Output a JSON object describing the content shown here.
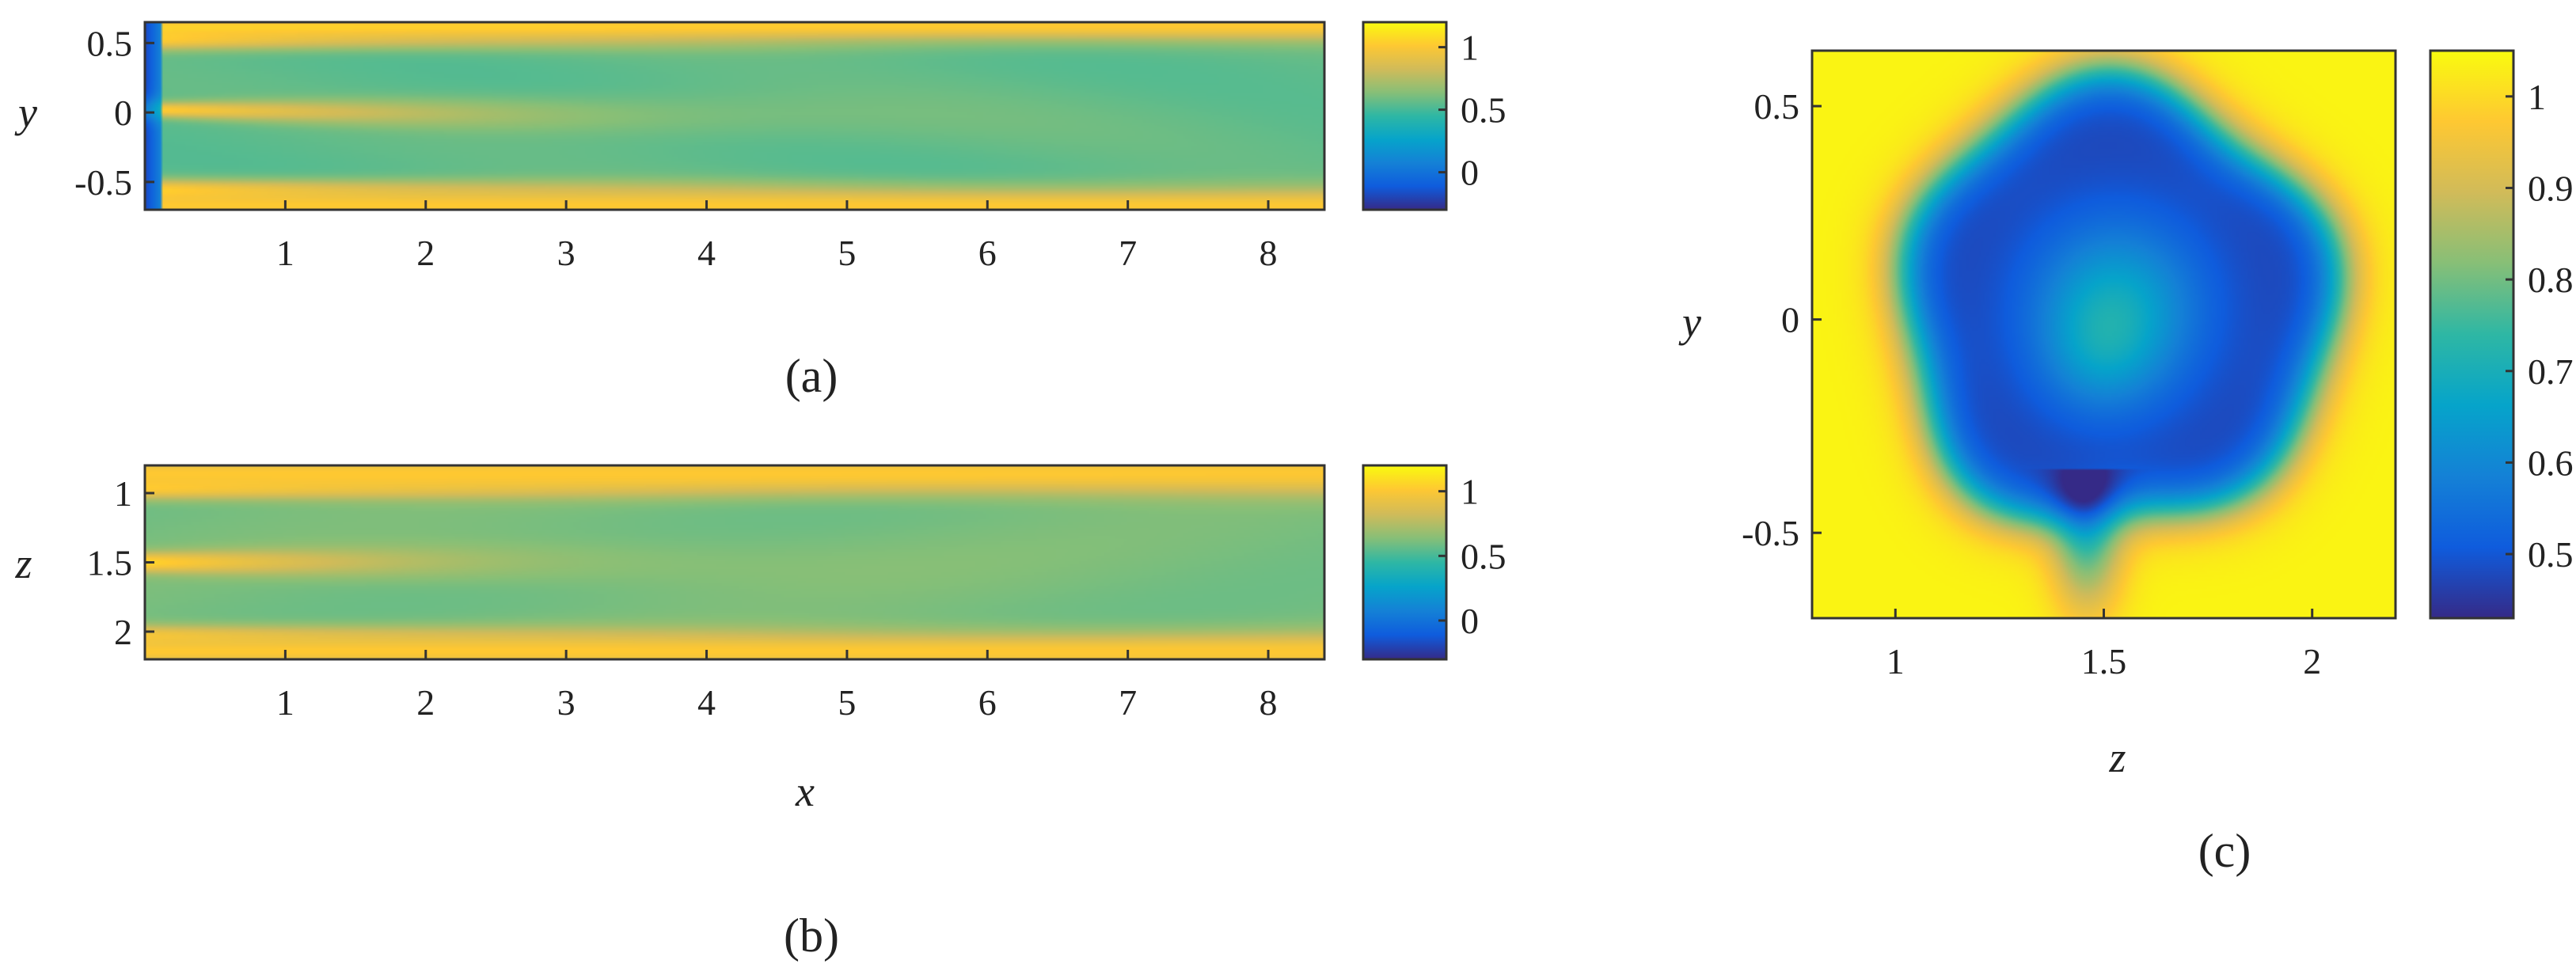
{
  "colormap": {
    "name": "parula",
    "stops": [
      "#352a87",
      "#0f5cdd",
      "#1481d6",
      "#06a4ca",
      "#2eb7a4",
      "#87bf77",
      "#d1bb59",
      "#fec832",
      "#f9fb0e"
    ]
  },
  "chart_data": [
    {
      "type": "heatmap",
      "panel_label": "(a)",
      "xlabel": "",
      "ylabel": "y",
      "xlim": [
        0,
        8.4
      ],
      "ylim": [
        -0.7,
        0.65
      ],
      "x_ticks": [
        1,
        2,
        3,
        4,
        5,
        6,
        7,
        8
      ],
      "x_tick_labels": [
        "1",
        "2",
        "3",
        "4",
        "5",
        "6",
        "7",
        "8"
      ],
      "y_ticks": [
        0.5,
        0,
        -0.5
      ],
      "y_tick_labels": [
        "0.5",
        "0",
        "-0.5"
      ],
      "colorbar": {
        "clim": [
          -0.3,
          1.2
        ],
        "ticks": [
          1,
          0.5,
          0
        ],
        "tick_labels": [
          "1",
          "0.5",
          "0"
        ]
      },
      "field_features": {
        "freestream": 1.0,
        "wake_core": 0.55,
        "inlet_min": -0.2,
        "shear_layer_positions": [
          0.55,
          0.0,
          -0.55
        ]
      }
    },
    {
      "type": "heatmap",
      "panel_label": "(b)",
      "xlabel": "x",
      "ylabel": "z",
      "xlim": [
        0,
        8.4
      ],
      "ylim": [
        0.8,
        2.2
      ],
      "y_reversed": true,
      "x_ticks": [
        1,
        2,
        3,
        4,
        5,
        6,
        7,
        8
      ],
      "x_tick_labels": [
        "1",
        "2",
        "3",
        "4",
        "5",
        "6",
        "7",
        "8"
      ],
      "y_ticks": [
        1,
        1.5,
        2
      ],
      "y_tick_labels": [
        "1",
        "1.5",
        "2"
      ],
      "colorbar": {
        "clim": [
          -0.3,
          1.2
        ],
        "ticks": [
          1,
          0.5,
          0
        ],
        "tick_labels": [
          "1",
          "0.5",
          "0"
        ]
      },
      "field_features": {
        "freestream": 1.0,
        "wake_core": 0.6,
        "shear_layer_positions": [
          0.95,
          1.5,
          2.05
        ]
      }
    },
    {
      "type": "heatmap",
      "panel_label": "(c)",
      "xlabel": "z",
      "ylabel": "y",
      "xlim": [
        0.8,
        2.2
      ],
      "ylim": [
        -0.7,
        0.63
      ],
      "x_ticks": [
        1,
        1.5,
        2
      ],
      "x_tick_labels": [
        "1",
        "1.5",
        "2"
      ],
      "y_ticks": [
        0.5,
        0,
        -0.5
      ],
      "y_tick_labels": [
        "0.5",
        "0",
        "-0.5"
      ],
      "colorbar": {
        "clim": [
          0.43,
          1.05
        ],
        "ticks": [
          1,
          0.9,
          0.8,
          0.7,
          0.6,
          0.5
        ],
        "tick_labels": [
          "1",
          "0.9",
          "0.8",
          "0.7",
          "0.6",
          "0.5"
        ]
      },
      "field_features": {
        "freestream": 1.04,
        "ring_min": 0.47,
        "center_value": 0.68,
        "wake_center": [
          1.53,
          0.03
        ],
        "wake_radius": 0.52
      }
    }
  ]
}
